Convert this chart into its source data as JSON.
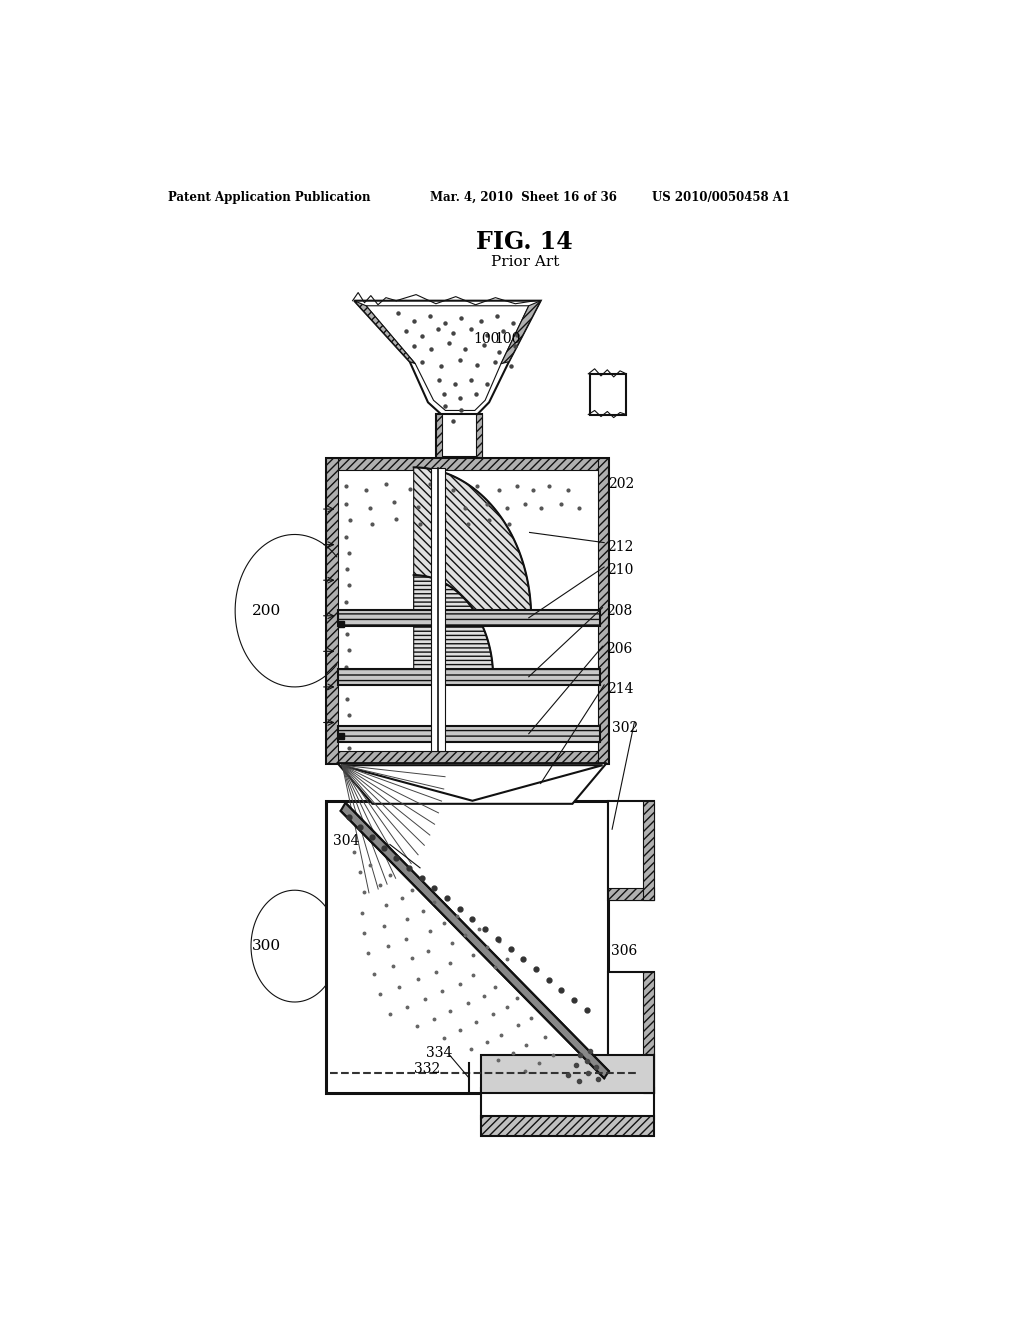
{
  "title": "FIG. 14",
  "subtitle": "Prior Art",
  "header_left": "Patent Application Publication",
  "header_mid": "Mar. 4, 2010  Sheet 16 of 36",
  "header_right": "US 2010/0050458 A1",
  "bg_color": "#ffffff"
}
